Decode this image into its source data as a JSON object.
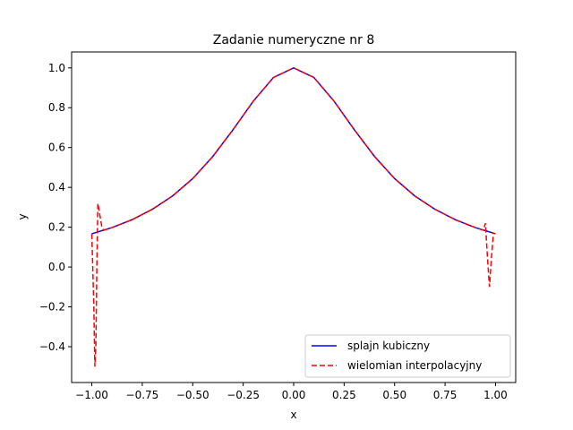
{
  "chart_data": {
    "type": "line",
    "title": "Zadanie numeryczne nr 8",
    "xlabel": "x",
    "ylabel": "y",
    "xlim": [
      -1.1,
      1.1
    ],
    "ylim": [
      -0.58,
      1.08
    ],
    "xticks": [
      -1.0,
      -0.75,
      -0.5,
      -0.25,
      0.0,
      0.25,
      0.5,
      0.75,
      1.0
    ],
    "xtick_labels": [
      "−1.00",
      "−0.75",
      "−0.50",
      "−0.25",
      "0.00",
      "0.25",
      "0.50",
      "0.75",
      "1.00"
    ],
    "yticks": [
      -0.4,
      -0.2,
      0.0,
      0.2,
      0.4,
      0.6,
      0.8,
      1.0
    ],
    "ytick_labels": [
      "−0.4",
      "−0.2",
      "0.0",
      "0.2",
      "0.4",
      "0.6",
      "0.8",
      "1.0"
    ],
    "grid": false,
    "legend_position": "lower-right",
    "series": [
      {
        "name": "splajn kubiczny",
        "color": "#0000ff",
        "style": "solid",
        "x": [
          -1.0,
          -0.9,
          -0.8,
          -0.7,
          -0.6,
          -0.5,
          -0.4,
          -0.3,
          -0.2,
          -0.1,
          0.0,
          0.1,
          0.2,
          0.3,
          0.4,
          0.5,
          0.6,
          0.7,
          0.8,
          0.9,
          1.0
        ],
        "y": [
          0.167,
          0.198,
          0.238,
          0.29,
          0.357,
          0.444,
          0.556,
          0.69,
          0.833,
          0.952,
          1.0,
          0.952,
          0.833,
          0.69,
          0.556,
          0.444,
          0.357,
          0.29,
          0.238,
          0.198,
          0.167
        ]
      },
      {
        "name": "wielomian interpolacyjny",
        "color": "#ff0000",
        "style": "dashed",
        "x": [
          -1.0,
          -0.99,
          -0.985,
          -0.98,
          -0.975,
          -0.97,
          -0.96,
          -0.95,
          -0.94,
          -0.9,
          -0.8,
          -0.7,
          -0.6,
          -0.5,
          -0.4,
          -0.3,
          -0.2,
          -0.1,
          0.0,
          0.1,
          0.2,
          0.3,
          0.4,
          0.5,
          0.6,
          0.7,
          0.8,
          0.9,
          0.94,
          0.95,
          0.96,
          0.97,
          0.98,
          0.99,
          1.0
        ],
        "y": [
          0.167,
          -0.2,
          -0.5,
          -0.4,
          0.0,
          0.32,
          0.26,
          0.2,
          0.185,
          0.198,
          0.238,
          0.29,
          0.357,
          0.444,
          0.556,
          0.69,
          0.833,
          0.952,
          1.0,
          0.952,
          0.833,
          0.69,
          0.556,
          0.444,
          0.357,
          0.29,
          0.238,
          0.198,
          0.185,
          0.22,
          0.05,
          -0.1,
          0.05,
          0.17,
          0.167
        ]
      }
    ]
  }
}
